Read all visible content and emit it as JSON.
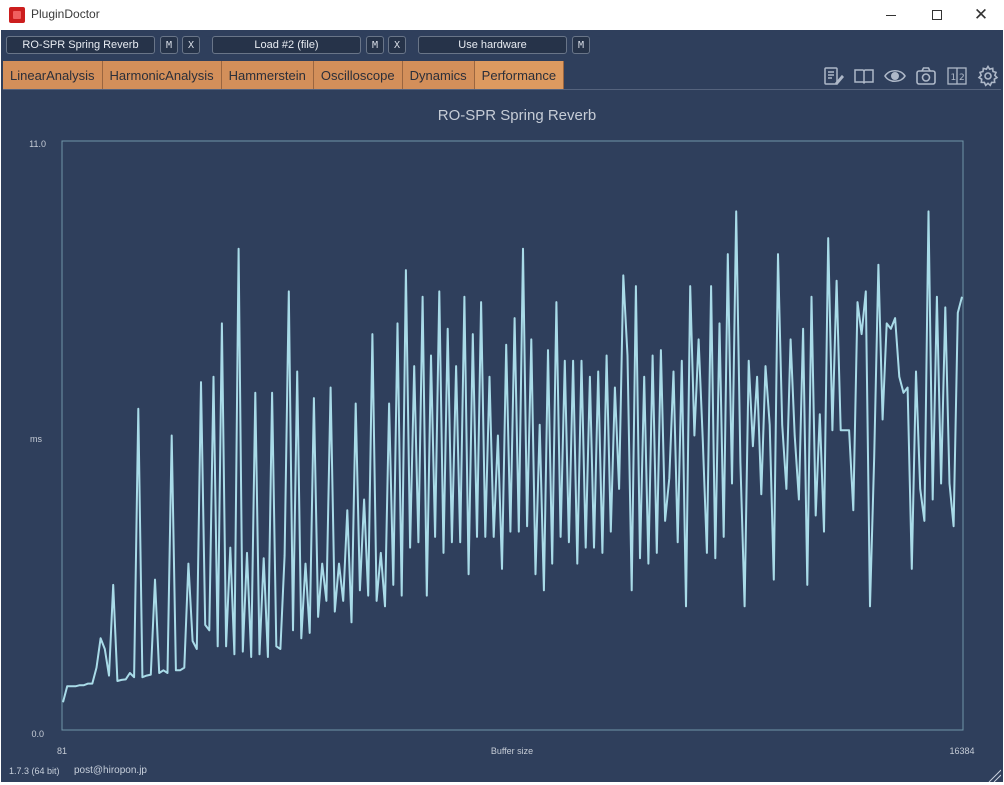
{
  "window": {
    "title": "PluginDoctor"
  },
  "toolbar": {
    "slot1": {
      "label": "RO-SPR Spring Reverb",
      "m": "M",
      "x": "X"
    },
    "slot2": {
      "label": "Load #2 (file)",
      "m": "M",
      "x": "X"
    },
    "slot3": {
      "label": "Use hardware",
      "m": "M"
    }
  },
  "tabs": [
    {
      "label": "LinearAnalysis"
    },
    {
      "label": "HarmonicAnalysis"
    },
    {
      "label": "Hammerstein"
    },
    {
      "label": "Oscilloscope"
    },
    {
      "label": "Dynamics"
    },
    {
      "label": "Performance",
      "active": true
    }
  ],
  "tool_icons": [
    "notes-icon",
    "book-icon",
    "eye-icon",
    "camera-icon",
    "split-view-icon",
    "gear-icon"
  ],
  "status": {
    "version": "1.7.3 (64 bit)",
    "email": "post@hiropon.jp"
  },
  "colors": {
    "background": "#2f3f5c",
    "tab": "#d38f5a",
    "line": "#a9dbe8"
  },
  "chart_data": {
    "type": "line",
    "title": "RO-SPR Spring Reverb",
    "xlabel": "Buffer size",
    "ylabel": "ms",
    "x_tick_labels": [
      "81",
      "16384"
    ],
    "y_tick_labels": [
      "11.0",
      "0.0"
    ],
    "xlim": [
      81,
      16384
    ],
    "ylim": [
      0,
      11
    ],
    "grid": false,
    "series": [
      {
        "values": [
          0.5,
          0.8,
          0.8,
          0.8,
          0.82,
          0.82,
          0.85,
          0.85,
          1.15,
          1.7,
          1.5,
          1.0,
          2.7,
          0.9,
          0.92,
          0.93,
          1.05,
          0.97,
          6.0,
          0.97,
          1.0,
          1.02,
          2.8,
          1.05,
          1.1,
          1.05,
          5.5,
          1.1,
          1.1,
          1.15,
          3.1,
          1.65,
          1.5,
          6.5,
          1.95,
          1.85,
          6.6,
          1.55,
          7.6,
          1.55,
          3.4,
          1.4,
          9.0,
          1.45,
          3.3,
          1.35,
          6.3,
          1.4,
          3.2,
          1.35,
          6.3,
          1.55,
          1.5,
          3.25,
          8.2,
          1.85,
          6.7,
          1.7,
          3.1,
          1.8,
          6.2,
          2.1,
          3.1,
          2.4,
          6.4,
          2.2,
          3.1,
          2.4,
          4.1,
          2.0,
          6.1,
          2.6,
          4.3,
          2.5,
          7.4,
          2.4,
          3.3,
          2.3,
          6.1,
          2.7,
          7.6,
          2.5,
          8.6,
          3.4,
          6.8,
          3.5,
          8.1,
          2.5,
          7.0,
          3.6,
          8.2,
          3.3,
          7.5,
          3.5,
          6.8,
          3.5,
          8.1,
          2.9,
          7.4,
          3.6,
          8.0,
          3.6,
          6.6,
          3.6,
          5.5,
          3.0,
          7.2,
          3.7,
          7.7,
          3.7,
          9.0,
          3.8,
          7.3,
          2.9,
          5.7,
          2.6,
          7.1,
          3.1,
          8.0,
          3.6,
          6.9,
          3.5,
          6.9,
          3.1,
          6.9,
          3.4,
          6.6,
          3.4,
          6.7,
          3.3,
          7.0,
          3.7,
          6.4,
          4.5,
          8.5,
          7.0,
          2.6,
          8.3,
          3.2,
          6.6,
          3.1,
          7.0,
          3.3,
          7.1,
          3.9,
          4.7,
          6.7,
          3.5,
          6.9,
          2.3,
          8.3,
          5.5,
          7.3,
          5.4,
          3.3,
          8.3,
          3.2,
          7.6,
          3.6,
          8.9,
          4.6,
          9.7,
          5.0,
          2.3,
          6.9,
          5.3,
          6.6,
          4.4,
          6.8,
          5.7,
          2.8,
          8.9,
          5.7,
          4.5,
          7.3,
          5.5,
          4.3,
          7.5,
          2.7,
          8.1,
          4.0,
          5.9,
          3.7,
          9.2,
          5.6,
          8.4,
          5.6,
          5.6,
          5.6,
          4.1,
          8.0,
          7.4,
          8.2,
          2.3,
          5.1,
          8.7,
          5.8,
          7.6,
          7.5,
          7.7,
          6.6,
          6.3,
          6.4,
          3.0,
          6.7,
          4.5,
          3.9,
          9.7,
          4.3,
          8.1,
          4.6,
          7.9,
          4.6,
          3.8,
          7.8,
          8.1
        ]
      }
    ]
  }
}
